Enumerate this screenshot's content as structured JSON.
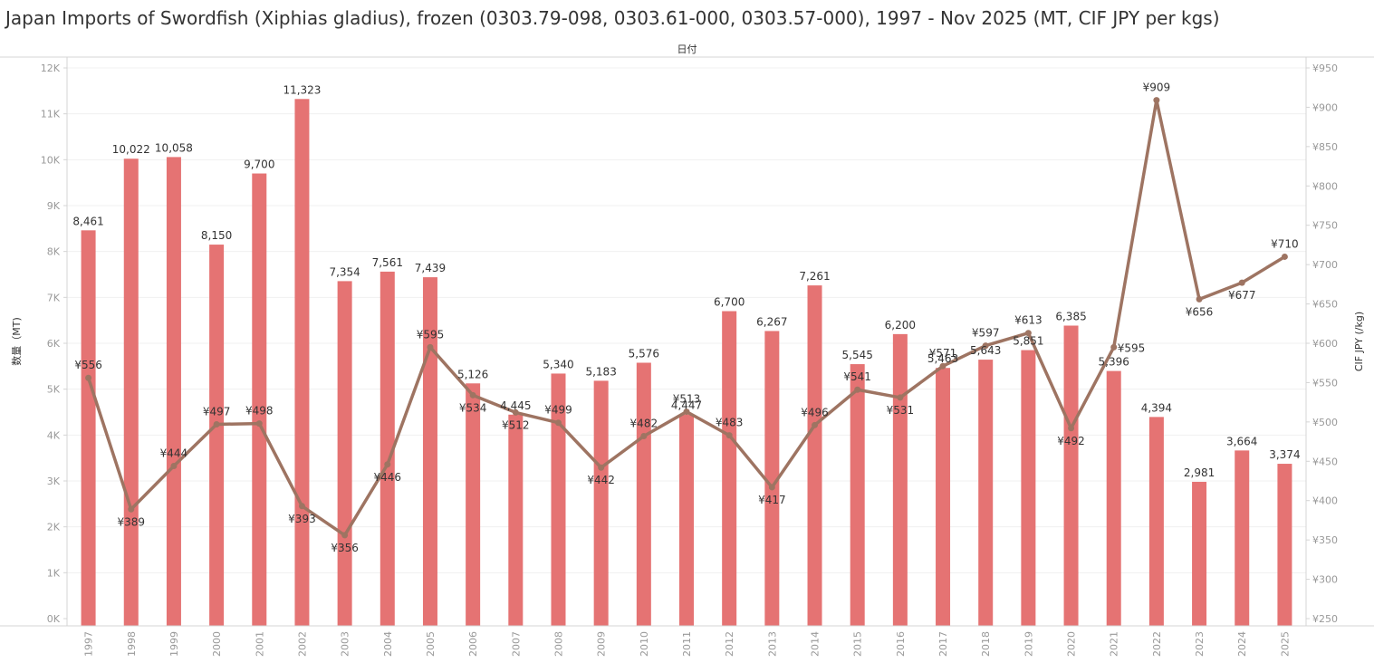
{
  "title": "Japan Imports of Swordfish (Xiphias gladius), frozen (0303.79-098, 0303.61-000, 0303.57-000), 1997 - Nov 2025 (MT, CIF JPY per kgs)",
  "column_header": "日付",
  "colors": {
    "bar": "#e57373",
    "line": "#9e7462",
    "axis_text": "#999999",
    "label": "#333333",
    "grid": "#f0f0f0"
  },
  "chart_data": {
    "type": "bar",
    "title": "Japan Imports of Swordfish (Xiphias gladius), frozen (0303.79-098, 0303.61-000, 0303.57-000), 1997 - Nov 2025 (MT, CIF JPY per kgs)",
    "xlabel": "日付",
    "ylabel": "数量（MT)",
    "y2label": "CIF JPY (/kg)",
    "ylim": [
      0,
      12000
    ],
    "y2lim": [
      250,
      950
    ],
    "y_ticks": [
      {
        "value": 0,
        "label": "0K"
      },
      {
        "value": 1000,
        "label": "1K"
      },
      {
        "value": 2000,
        "label": "2K"
      },
      {
        "value": 3000,
        "label": "3K"
      },
      {
        "value": 4000,
        "label": "4K"
      },
      {
        "value": 5000,
        "label": "5K"
      },
      {
        "value": 6000,
        "label": "6K"
      },
      {
        "value": 7000,
        "label": "7K"
      },
      {
        "value": 8000,
        "label": "8K"
      },
      {
        "value": 9000,
        "label": "9K"
      },
      {
        "value": 10000,
        "label": "10K"
      },
      {
        "value": 11000,
        "label": "11K"
      },
      {
        "value": 12000,
        "label": "12K"
      }
    ],
    "y2_ticks": [
      {
        "value": 250,
        "label": "¥250"
      },
      {
        "value": 300,
        "label": "¥300"
      },
      {
        "value": 350,
        "label": "¥350"
      },
      {
        "value": 400,
        "label": "¥400"
      },
      {
        "value": 450,
        "label": "¥450"
      },
      {
        "value": 500,
        "label": "¥500"
      },
      {
        "value": 550,
        "label": "¥550"
      },
      {
        "value": 600,
        "label": "¥600"
      },
      {
        "value": 650,
        "label": "¥650"
      },
      {
        "value": 700,
        "label": "¥700"
      },
      {
        "value": 750,
        "label": "¥750"
      },
      {
        "value": 800,
        "label": "¥800"
      },
      {
        "value": 850,
        "label": "¥850"
      },
      {
        "value": 900,
        "label": "¥900"
      },
      {
        "value": 950,
        "label": "¥950"
      }
    ],
    "categories": [
      "1997",
      "1998",
      "1999",
      "2000",
      "2001",
      "2002",
      "2003",
      "2004",
      "2005",
      "2006",
      "2007",
      "2008",
      "2009",
      "2010",
      "2011",
      "2012",
      "2013",
      "2014",
      "2015",
      "2016",
      "2017",
      "2018",
      "2019",
      "2020",
      "2021",
      "2022",
      "2023",
      "2024",
      "2025"
    ],
    "series": [
      {
        "type": "bar",
        "values": [
          8461,
          10022,
          10058,
          8150,
          9700,
          11323,
          7354,
          7561,
          7439,
          5126,
          4445,
          5340,
          5183,
          5576,
          4447,
          6700,
          6267,
          7261,
          5545,
          6200,
          5463,
          5643,
          5851,
          6385,
          5396,
          4394,
          2981,
          3664,
          3374
        ],
        "labels": [
          "8,461",
          "10,022",
          "10,058",
          "8,150",
          "9,700",
          "11,323",
          "7,354",
          "7,561",
          "7,439",
          "5,126",
          "4,445",
          "5,340",
          "5,183",
          "5,576",
          "4,447",
          "6,700",
          "6,267",
          "7,261",
          "5,545",
          "6,200",
          "5,463",
          "5,643",
          "5,851",
          "6,385",
          "5,396",
          "4,394",
          "2,981",
          "3,664",
          "3,374"
        ]
      },
      {
        "type": "line",
        "values": [
          556,
          389,
          444,
          497,
          498,
          393,
          356,
          446,
          595,
          534,
          512,
          499,
          442,
          482,
          513,
          483,
          417,
          496,
          541,
          531,
          571,
          597,
          613,
          492,
          595,
          909,
          656,
          677,
          710
        ],
        "labels": [
          "¥556",
          "¥389",
          "¥444",
          "¥497",
          "¥498",
          "¥393",
          "¥356",
          "¥446",
          "¥595",
          "¥534",
          "¥512",
          "¥499",
          "¥442",
          "¥482",
          "¥513",
          "¥483",
          "¥417",
          "¥496",
          "¥541",
          "¥531",
          "¥571",
          "¥597",
          "¥613",
          "¥492",
          "¥595",
          "¥909",
          "¥656",
          "¥677",
          "¥710"
        ],
        "label_positions": [
          "above",
          "below",
          "above",
          "above",
          "above",
          "below",
          "below",
          "below",
          "above",
          "below",
          "below",
          "above",
          "below",
          "above",
          "above",
          "above",
          "below",
          "above",
          "above",
          "below",
          "above",
          "above",
          "above",
          "below",
          "right",
          "above",
          "below",
          "below",
          "above"
        ]
      }
    ],
    "grid": true
  }
}
